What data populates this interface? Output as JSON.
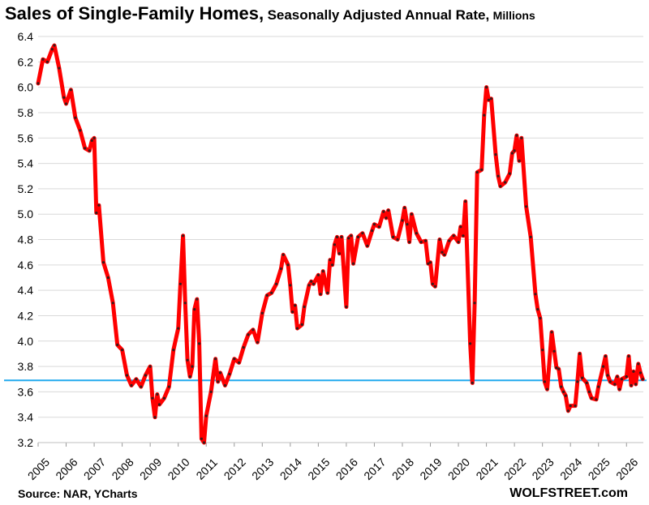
{
  "title": {
    "main": "Sales of Single-Family Homes,",
    "sub": "Seasonally Adjusted Annual Rate,",
    "unit": "Millions"
  },
  "source": "Source: NAR, YCharts",
  "brand": "WOLFSTREET.com",
  "colors": {
    "line": "#ff0000",
    "marker": "#3a1a1a",
    "reference": "#22aaee",
    "grid": "#d9d9d9"
  },
  "chart_data": {
    "type": "line",
    "title": "Sales of Single-Family Homes, Seasonally Adjusted Annual Rate, Millions",
    "xlabel": "",
    "ylabel": "",
    "ylim": [
      3.2,
      6.4
    ],
    "xlim": [
      2005,
      2026.6
    ],
    "yticks": [
      "3.2",
      "3.4",
      "3.6",
      "3.8",
      "4.0",
      "4.2",
      "4.4",
      "4.6",
      "4.8",
      "5.0",
      "5.2",
      "5.4",
      "5.6",
      "5.8",
      "6.0",
      "6.2",
      "6.4"
    ],
    "xticks": [
      "2005",
      "2006",
      "2007",
      "2008",
      "2009",
      "2010",
      "2011",
      "2012",
      "2013",
      "2014",
      "2015",
      "2016",
      "2017",
      "2018",
      "2019",
      "2020",
      "2021",
      "2022",
      "2023",
      "2024",
      "2025",
      "2026"
    ],
    "grid": "horizontal",
    "reference_line": 3.69,
    "series": [
      {
        "points": [
          [
            2005.0,
            6.03
          ],
          [
            2005.17,
            6.22
          ],
          [
            2005.33,
            6.2
          ],
          [
            2005.5,
            6.3
          ],
          [
            2005.58,
            6.33
          ],
          [
            2005.75,
            6.15
          ],
          [
            2005.92,
            5.92
          ],
          [
            2006.0,
            5.87
          ],
          [
            2006.17,
            5.98
          ],
          [
            2006.33,
            5.76
          ],
          [
            2006.5,
            5.66
          ],
          [
            2006.67,
            5.52
          ],
          [
            2006.83,
            5.5
          ],
          [
            2006.92,
            5.58
          ],
          [
            2007.0,
            5.6
          ],
          [
            2007.08,
            5.01
          ],
          [
            2007.17,
            5.07
          ],
          [
            2007.33,
            4.62
          ],
          [
            2007.5,
            4.5
          ],
          [
            2007.67,
            4.3
          ],
          [
            2007.83,
            3.97
          ],
          [
            2008.0,
            3.93
          ],
          [
            2008.17,
            3.73
          ],
          [
            2008.33,
            3.65
          ],
          [
            2008.5,
            3.7
          ],
          [
            2008.67,
            3.64
          ],
          [
            2008.83,
            3.73
          ],
          [
            2009.0,
            3.8
          ],
          [
            2009.08,
            3.55
          ],
          [
            2009.17,
            3.4
          ],
          [
            2009.25,
            3.58
          ],
          [
            2009.33,
            3.5
          ],
          [
            2009.5,
            3.55
          ],
          [
            2009.67,
            3.64
          ],
          [
            2009.83,
            3.93
          ],
          [
            2010.0,
            4.1
          ],
          [
            2010.08,
            4.45
          ],
          [
            2010.17,
            4.83
          ],
          [
            2010.25,
            4.3
          ],
          [
            2010.33,
            3.85
          ],
          [
            2010.42,
            3.72
          ],
          [
            2010.5,
            3.8
          ],
          [
            2010.58,
            4.25
          ],
          [
            2010.67,
            4.33
          ],
          [
            2010.75,
            3.98
          ],
          [
            2010.83,
            3.23
          ],
          [
            2010.92,
            3.2
          ],
          [
            2011.0,
            3.41
          ],
          [
            2011.17,
            3.6
          ],
          [
            2011.33,
            3.86
          ],
          [
            2011.42,
            3.68
          ],
          [
            2011.5,
            3.75
          ],
          [
            2011.67,
            3.65
          ],
          [
            2011.83,
            3.74
          ],
          [
            2012.0,
            3.86
          ],
          [
            2012.17,
            3.83
          ],
          [
            2012.33,
            3.95
          ],
          [
            2012.5,
            4.05
          ],
          [
            2012.67,
            4.09
          ],
          [
            2012.83,
            3.99
          ],
          [
            2013.0,
            4.22
          ],
          [
            2013.17,
            4.36
          ],
          [
            2013.33,
            4.38
          ],
          [
            2013.5,
            4.45
          ],
          [
            2013.67,
            4.57
          ],
          [
            2013.75,
            4.68
          ],
          [
            2013.92,
            4.6
          ],
          [
            2014.0,
            4.44
          ],
          [
            2014.08,
            4.23
          ],
          [
            2014.17,
            4.28
          ],
          [
            2014.25,
            4.1
          ],
          [
            2014.42,
            4.13
          ],
          [
            2014.5,
            4.27
          ],
          [
            2014.67,
            4.44
          ],
          [
            2014.75,
            4.47
          ],
          [
            2014.83,
            4.45
          ],
          [
            2015.0,
            4.52
          ],
          [
            2015.08,
            4.37
          ],
          [
            2015.17,
            4.55
          ],
          [
            2015.33,
            4.38
          ],
          [
            2015.42,
            4.64
          ],
          [
            2015.5,
            4.6
          ],
          [
            2015.58,
            4.76
          ],
          [
            2015.67,
            4.82
          ],
          [
            2015.75,
            4.69
          ],
          [
            2015.83,
            4.82
          ],
          [
            2016.0,
            4.27
          ],
          [
            2016.08,
            4.81
          ],
          [
            2016.17,
            4.83
          ],
          [
            2016.25,
            4.61
          ],
          [
            2016.42,
            4.82
          ],
          [
            2016.58,
            4.85
          ],
          [
            2016.75,
            4.75
          ],
          [
            2016.92,
            4.87
          ],
          [
            2017.0,
            4.92
          ],
          [
            2017.17,
            4.9
          ],
          [
            2017.33,
            5.02
          ],
          [
            2017.42,
            4.97
          ],
          [
            2017.5,
            5.03
          ],
          [
            2017.67,
            4.82
          ],
          [
            2017.83,
            4.8
          ],
          [
            2018.0,
            4.95
          ],
          [
            2018.08,
            5.05
          ],
          [
            2018.17,
            4.92
          ],
          [
            2018.25,
            4.78
          ],
          [
            2018.33,
            5.0
          ],
          [
            2018.5,
            4.85
          ],
          [
            2018.67,
            4.78
          ],
          [
            2018.83,
            4.79
          ],
          [
            2018.92,
            4.61
          ],
          [
            2019.0,
            4.62
          ],
          [
            2019.08,
            4.45
          ],
          [
            2019.17,
            4.43
          ],
          [
            2019.33,
            4.8
          ],
          [
            2019.42,
            4.7
          ],
          [
            2019.5,
            4.68
          ],
          [
            2019.67,
            4.79
          ],
          [
            2019.83,
            4.83
          ],
          [
            2020.0,
            4.78
          ],
          [
            2020.08,
            4.9
          ],
          [
            2020.17,
            4.83
          ],
          [
            2020.25,
            5.1
          ],
          [
            2020.42,
            3.98
          ],
          [
            2020.5,
            3.67
          ],
          [
            2020.58,
            4.3
          ],
          [
            2020.67,
            5.33
          ],
          [
            2020.83,
            5.35
          ],
          [
            2020.92,
            5.78
          ],
          [
            2021.0,
            6.0
          ],
          [
            2021.08,
            5.9
          ],
          [
            2021.17,
            5.91
          ],
          [
            2021.33,
            5.47
          ],
          [
            2021.42,
            5.3
          ],
          [
            2021.5,
            5.22
          ],
          [
            2021.67,
            5.25
          ],
          [
            2021.83,
            5.32
          ],
          [
            2021.92,
            5.48
          ],
          [
            2022.0,
            5.5
          ],
          [
            2022.08,
            5.62
          ],
          [
            2022.17,
            5.42
          ],
          [
            2022.25,
            5.6
          ],
          [
            2022.42,
            5.06
          ],
          [
            2022.58,
            4.82
          ],
          [
            2022.75,
            4.37
          ],
          [
            2022.83,
            4.25
          ],
          [
            2022.92,
            4.18
          ],
          [
            2023.0,
            3.93
          ],
          [
            2023.08,
            3.68
          ],
          [
            2023.17,
            3.62
          ],
          [
            2023.33,
            4.07
          ],
          [
            2023.42,
            3.92
          ],
          [
            2023.5,
            3.79
          ],
          [
            2023.58,
            3.78
          ],
          [
            2023.67,
            3.64
          ],
          [
            2023.75,
            3.6
          ],
          [
            2023.83,
            3.57
          ],
          [
            2023.92,
            3.45
          ],
          [
            2024.0,
            3.49
          ],
          [
            2024.17,
            3.49
          ],
          [
            2024.25,
            3.68
          ],
          [
            2024.33,
            3.9
          ],
          [
            2024.42,
            3.71
          ],
          [
            2024.58,
            3.67
          ],
          [
            2024.67,
            3.6
          ],
          [
            2024.75,
            3.55
          ],
          [
            2024.92,
            3.54
          ],
          [
            2025.0,
            3.64
          ],
          [
            2025.17,
            3.8
          ],
          [
            2025.25,
            3.88
          ],
          [
            2025.33,
            3.73
          ],
          [
            2025.42,
            3.68
          ],
          [
            2025.58,
            3.66
          ],
          [
            2025.67,
            3.72
          ],
          [
            2025.75,
            3.62
          ],
          [
            2025.83,
            3.7
          ],
          [
            2026.0,
            3.72
          ],
          [
            2026.08,
            3.88
          ],
          [
            2026.17,
            3.65
          ],
          [
            2026.25,
            3.76
          ],
          [
            2026.33,
            3.66
          ],
          [
            2026.42,
            3.82
          ],
          [
            2026.5,
            3.75
          ],
          [
            2026.58,
            3.7
          ]
        ]
      }
    ]
  }
}
